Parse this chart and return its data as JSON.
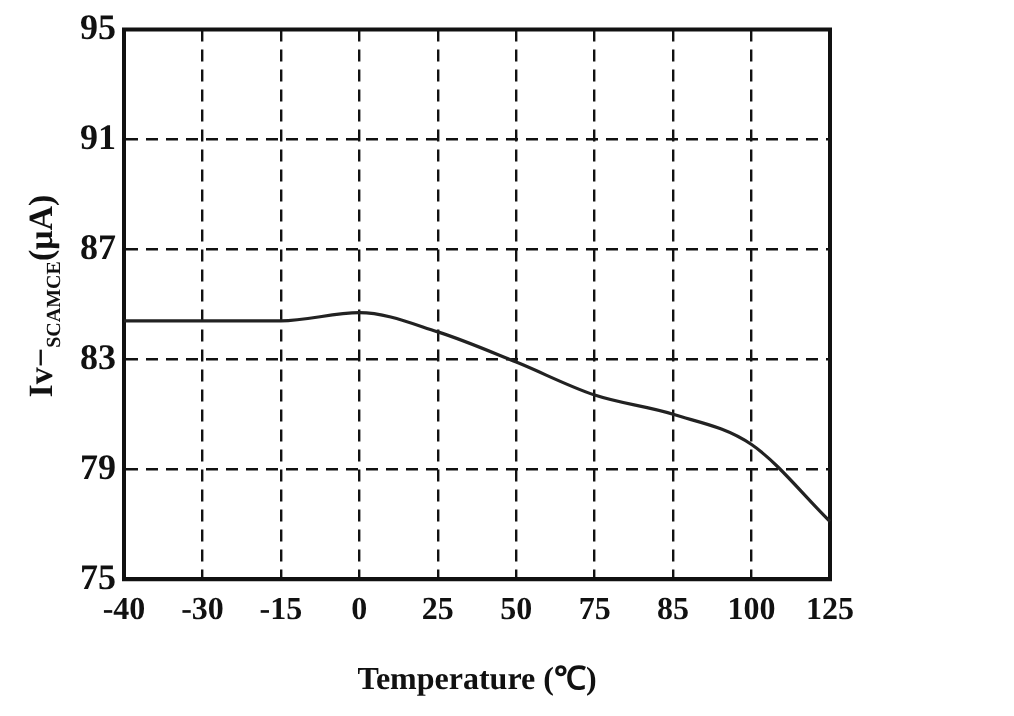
{
  "chart_data": {
    "type": "line",
    "xlabel": "Temperature (℃)",
    "ylabel": "Iv−$_{SCAMCE}$(μA)",
    "categories": [
      "-40",
      "-30",
      "-15",
      "0",
      "25",
      "50",
      "75",
      "85",
      "100",
      "125"
    ],
    "series": [
      {
        "color": "#222222",
        "values": [
          84.4,
          84.4,
          84.4,
          84.7,
          84.0,
          82.9,
          81.7,
          81.0,
          79.9,
          77.1
        ]
      }
    ],
    "ylim": [
      75,
      95
    ],
    "yticks": [
      75,
      79,
      83,
      87,
      91,
      95
    ],
    "grid": true,
    "legend": false,
    "marker": "none",
    "line_style": "solid"
  }
}
